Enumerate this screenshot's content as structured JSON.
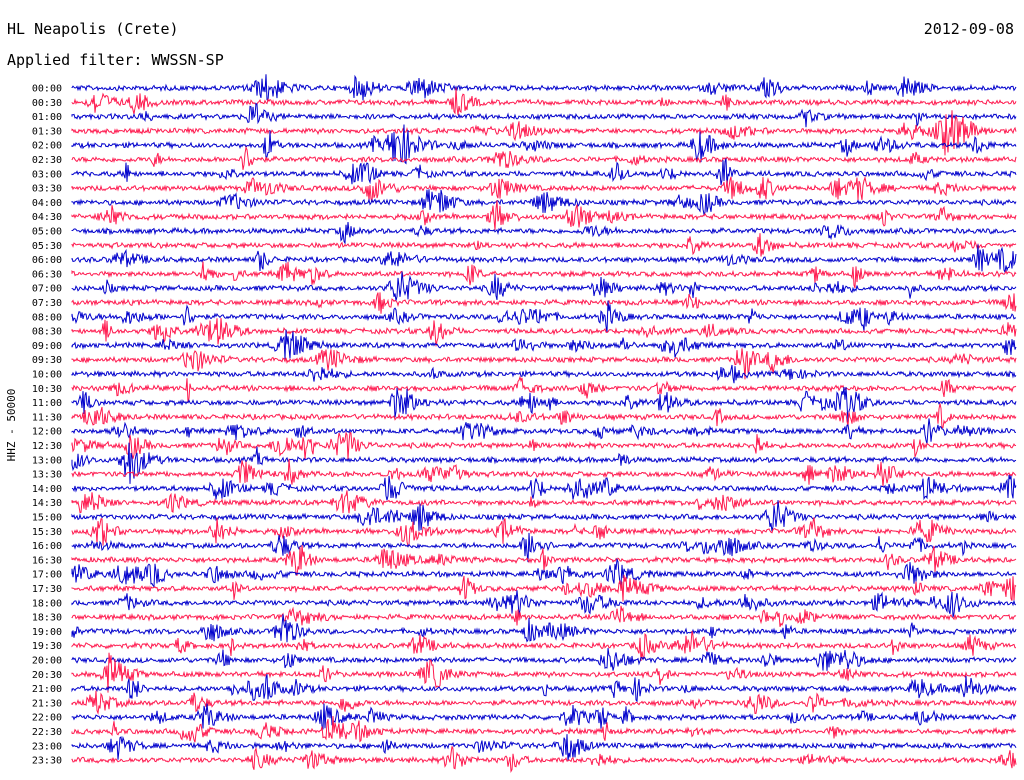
{
  "header": {
    "station": "HL Neapolis (Crete)",
    "date": "2012-09-08",
    "filter": "Applied filter: WWSSN-SP"
  },
  "chart_data": {
    "type": "line",
    "title": "HL Neapolis (Crete)",
    "subtitle": "Applied filter: WWSSN-SP",
    "ylabel": "HHZ - 50000",
    "row_labels": [
      "00:00",
      "00:30",
      "01:00",
      "01:30",
      "02:00",
      "02:30",
      "03:00",
      "03:30",
      "04:00",
      "04:30",
      "05:00",
      "05:30",
      "06:00",
      "06:30",
      "07:00",
      "07:30",
      "08:00",
      "08:30",
      "09:00",
      "09:30",
      "10:00",
      "10:30",
      "11:00",
      "11:30",
      "12:00",
      "12:30",
      "13:00",
      "13:30",
      "14:00",
      "14:30",
      "15:00",
      "15:30",
      "16:00",
      "16:30",
      "17:00",
      "17:30",
      "18:00",
      "18:30",
      "19:00",
      "19:30",
      "20:00",
      "20:30",
      "21:00",
      "21:30",
      "22:00",
      "22:30",
      "23:00",
      "23:30"
    ],
    "series_colors": [
      "#0000cc",
      "#ff1a4f"
    ],
    "grid": false,
    "legend": "none"
  }
}
